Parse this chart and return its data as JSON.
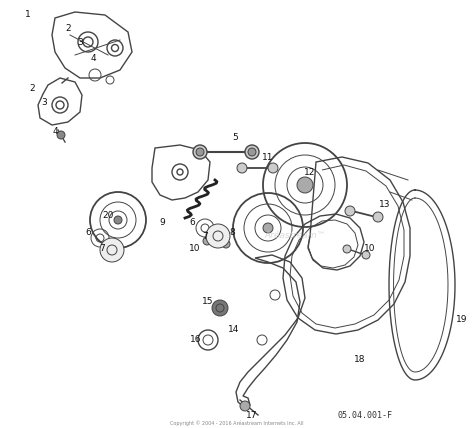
{
  "background_color": "#ffffff",
  "line_color": "#444444",
  "label_color": "#111111",
  "watermark_text": "Aréastream™",
  "diagram_code": "05.04.001-F",
  "copyright_text": "Copyright © 2004 - 2016 Aréastream Internets Inc. All",
  "fig_width": 4.74,
  "fig_height": 4.28,
  "dpi": 100
}
